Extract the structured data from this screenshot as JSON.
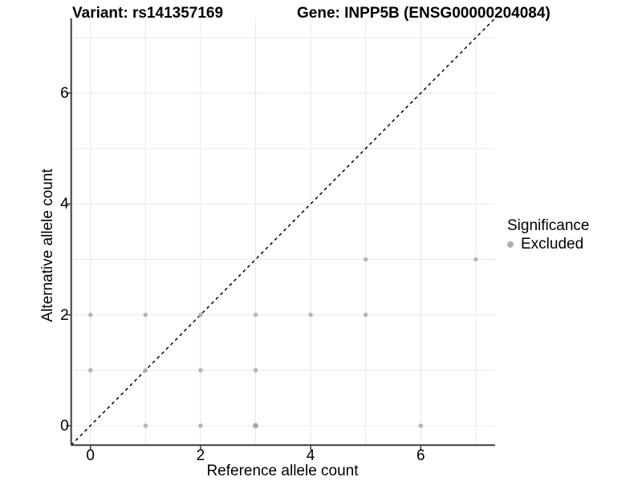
{
  "chart_data": {
    "type": "scatter",
    "title_left": "Variant: rs141357169",
    "title_right": "Gene: INPP5B (ENSG00000204084)",
    "xlabel": "Reference allele count",
    "ylabel": "Alternative allele count",
    "xlim": [
      -0.35,
      7.35
    ],
    "ylim": [
      -0.35,
      7.35
    ],
    "xticks": [
      0,
      2,
      4,
      6
    ],
    "yticks": [
      0,
      2,
      4,
      6
    ],
    "grid_x": [
      0,
      1,
      2,
      3,
      4,
      5,
      6,
      7
    ],
    "grid_y": [
      0,
      1,
      2,
      3,
      4,
      5,
      6,
      7
    ],
    "grid_on": true,
    "points": [
      [
        1,
        0
      ],
      [
        2,
        0
      ],
      [
        3,
        0
      ],
      [
        6,
        0
      ],
      [
        0,
        1
      ],
      [
        1,
        1
      ],
      [
        2,
        1
      ],
      [
        3,
        1
      ],
      [
        0,
        2
      ],
      [
        1,
        2
      ],
      [
        2,
        2
      ],
      [
        3,
        2
      ],
      [
        4,
        2
      ],
      [
        5,
        2
      ],
      [
        5,
        3
      ],
      [
        7,
        3
      ]
    ],
    "emphasized_points": [
      [
        3,
        0
      ]
    ],
    "identity_line": {
      "type": "y=x",
      "style": "dashed",
      "color": "#000000"
    },
    "legend": {
      "position": "right",
      "title": "Significance",
      "items": [
        {
          "label": "Excluded",
          "color": "#b0b0b0"
        }
      ]
    },
    "colors": {
      "point": "#b0b0b0",
      "point_emphasis": "#9e9e9e",
      "grid": "#e8e8e8",
      "axis": "#3b3b3b",
      "tick": "#333333",
      "background": "#ffffff"
    }
  }
}
